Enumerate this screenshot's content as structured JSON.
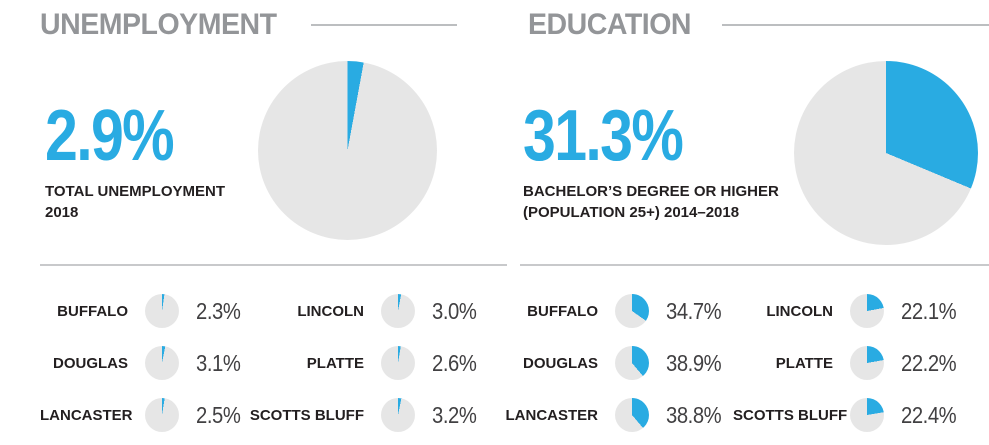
{
  "colors": {
    "accent": "#29ABE2",
    "pie_gray": "#E6E6E6",
    "header_gray": "#939598",
    "rule_gray": "#BCBEC0",
    "label_black": "#231F20",
    "value_gray": "#414042"
  },
  "sections": {
    "unemployment": {
      "title": "UNEMPLOYMENT",
      "stat_value": "2.9%",
      "stat_label_line1": "TOTAL UNEMPLOYMENT",
      "stat_label_line2": "2018",
      "overview_pct": 2.9,
      "counties": [
        {
          "name": "BUFFALO",
          "value": "2.3%",
          "pct": 2.3
        },
        {
          "name": "DOUGLAS",
          "value": "3.1%",
          "pct": 3.1
        },
        {
          "name": "LANCASTER",
          "value": "2.5%",
          "pct": 2.5
        },
        {
          "name": "LINCOLN",
          "value": "3.0%",
          "pct": 3.0
        },
        {
          "name": "PLATTE",
          "value": "2.6%",
          "pct": 2.6
        },
        {
          "name": "SCOTTS BLUFF",
          "value": "3.2%",
          "pct": 3.2
        }
      ]
    },
    "education": {
      "title": "EDUCATION",
      "stat_value": "31.3%",
      "stat_label_line1": "BACHELOR’S DEGREE OR HIGHER",
      "stat_label_line2": "(POPULATION 25+) 2014–2018",
      "overview_pct": 31.3,
      "counties": [
        {
          "name": "BUFFALO",
          "value": "34.7%",
          "pct": 34.7
        },
        {
          "name": "DOUGLAS",
          "value": "38.9%",
          "pct": 38.9
        },
        {
          "name": "LANCASTER",
          "value": "38.8%",
          "pct": 38.8
        },
        {
          "name": "LINCOLN",
          "value": "22.1%",
          "pct": 22.1
        },
        {
          "name": "PLATTE",
          "value": "22.2%",
          "pct": 22.2
        },
        {
          "name": "SCOTTS BLUFF",
          "value": "22.4%",
          "pct": 22.4
        }
      ]
    }
  },
  "chart_data": [
    {
      "type": "pie",
      "title": "TOTAL UNEMPLOYMENT 2018",
      "slices": [
        {
          "label": "Unemployment rate",
          "value": 2.9,
          "color": "#29ABE2"
        },
        {
          "label": "Remainder",
          "value": 97.1,
          "color": "#E6E6E6"
        }
      ],
      "start_angle": "12 o'clock, clockwise",
      "legend": false
    },
    {
      "type": "pie",
      "title": "BACHELOR’S DEGREE OR HIGHER (POPULATION 25+) 2014–2018",
      "slices": [
        {
          "label": "Bachelor's degree or higher",
          "value": 31.3,
          "color": "#29ABE2"
        },
        {
          "label": "Remainder",
          "value": 68.7,
          "color": "#E6E6E6"
        }
      ],
      "start_angle": "12 o'clock, clockwise",
      "legend": false
    },
    {
      "type": "pie",
      "title": "County unemployment rates 2018 (mini pies)",
      "categories": [
        "BUFFALO",
        "DOUGLAS",
        "LANCASTER",
        "LINCOLN",
        "PLATTE",
        "SCOTTS BLUFF"
      ],
      "values": [
        2.3,
        3.1,
        2.5,
        3.0,
        2.6,
        3.2
      ]
    },
    {
      "type": "pie",
      "title": "County bachelor's degree or higher 2014–2018 (mini pies)",
      "categories": [
        "BUFFALO",
        "DOUGLAS",
        "LANCASTER",
        "LINCOLN",
        "PLATTE",
        "SCOTTS BLUFF"
      ],
      "values": [
        34.7,
        38.9,
        38.8,
        22.1,
        22.2,
        22.4
      ]
    }
  ]
}
